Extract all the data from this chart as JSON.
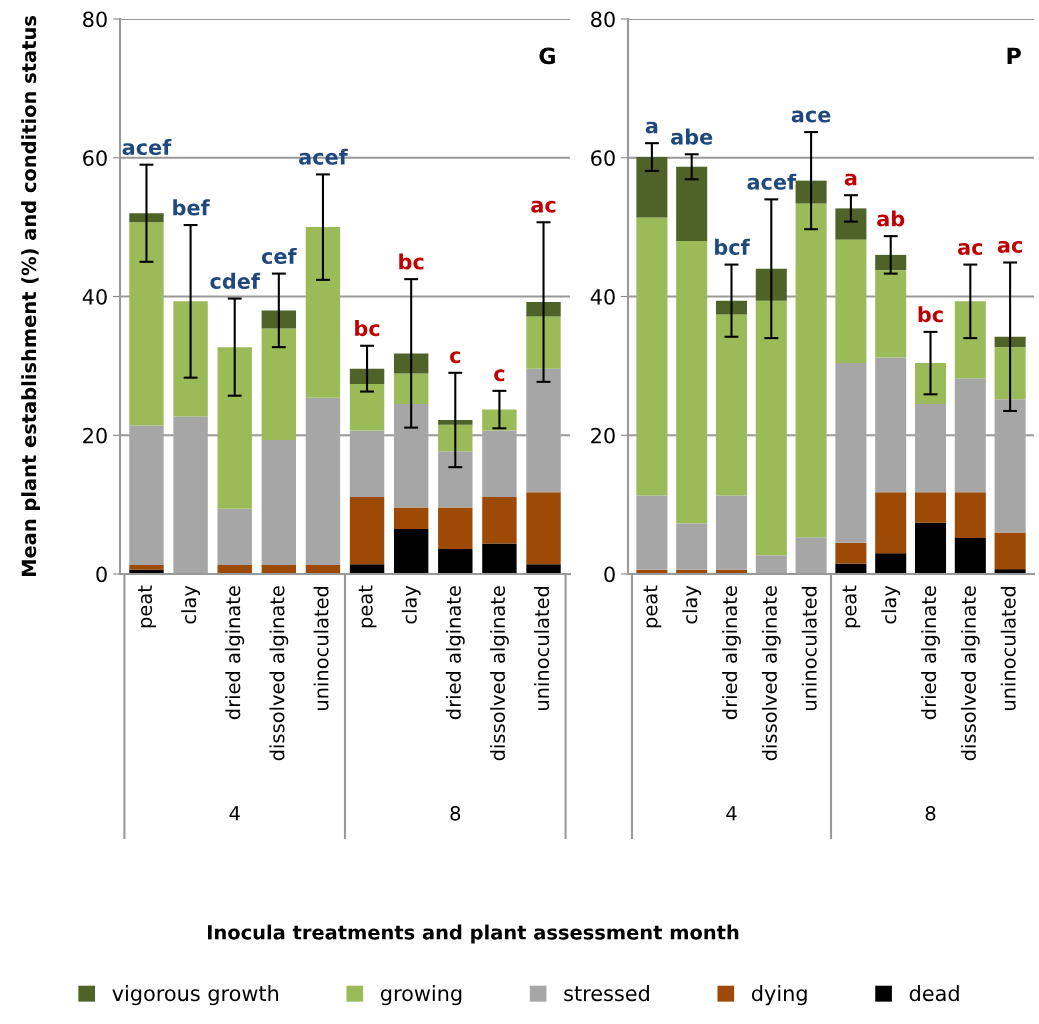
{
  "chart_data": [
    {
      "type": "bar",
      "title": "G",
      "ylabel": "Mean plant establishment (%) and condition status",
      "xlabel": "Inocula treatments and plant assessment month",
      "stacked": true,
      "legend": "bottom",
      "grid": "y",
      "ylim": [
        0,
        80
      ],
      "yticks": [
        0,
        20,
        40,
        60,
        80
      ],
      "categories": [
        "peat",
        "clay",
        "dried alginate",
        "dissolved alginate",
        "uninoculated",
        "peat",
        "clay",
        "dried alginate",
        "dissolved alginate",
        "uninoculated"
      ],
      "series": [
        {
          "name": "dead",
          "color": "#000000",
          "values": [
            0.6,
            0,
            0,
            0,
            0,
            1.4,
            6.5,
            3.6,
            4.4,
            1.4
          ]
        },
        {
          "name": "dying",
          "color": "#9c4a06",
          "values": [
            0.7,
            0,
            1.3,
            1.3,
            1.3,
            9.7,
            3.1,
            6.0,
            6.7,
            10.4
          ]
        },
        {
          "name": "stressed",
          "color": "#a6a6a6",
          "values": [
            20.1,
            22.7,
            8.1,
            18.0,
            24.1,
            9.6,
            14.9,
            8.1,
            9.6,
            17.8
          ]
        },
        {
          "name": "growing",
          "color": "#9bbb59",
          "values": [
            29.3,
            16.6,
            23.3,
            16.1,
            24.6,
            6.7,
            4.4,
            3.8,
            3.0,
            7.5
          ]
        },
        {
          "name": "vigorous growth",
          "color": "#4f6228",
          "values": [
            1.3,
            0,
            0,
            2.6,
            0,
            2.2,
            2.9,
            0.7,
            0,
            2.1
          ],
          "errors": [
            7,
            11,
            7,
            5.3,
            7.6,
            3.3,
            10.7,
            6.8,
            2.7,
            11.5
          ]
        }
      ],
      "annotations": [
        "acef",
        "bef",
        "cdef",
        "cef",
        "acef",
        "bc",
        "bc",
        "c",
        "c",
        "ac",
        "4",
        "8"
      ]
    },
    {
      "type": "bar",
      "title": "P",
      "stacked": true,
      "grid": "y",
      "ylim": [
        0,
        80
      ],
      "yticks": [
        0,
        20,
        40,
        60,
        80
      ],
      "categories": [
        "peat",
        "clay",
        "dried alginate",
        "dissolved alginate",
        "uninoculated",
        "peat",
        "clay",
        "dried alginate",
        "dissolved alginate",
        "uninoculated"
      ],
      "series": [
        {
          "color": "#000000",
          "values": [
            0,
            0,
            0,
            0,
            0,
            1.5,
            3.0,
            7.4,
            5.2,
            0.7
          ]
        },
        {
          "color": "#9c4a06",
          "values": [
            0.6,
            0.6,
            0.6,
            0,
            0,
            3.0,
            8.8,
            4.4,
            6.6,
            5.3
          ]
        },
        {
          "color": "#a6a6a6",
          "values": [
            10.7,
            6.7,
            10.7,
            2.7,
            5.3,
            25.9,
            19.4,
            12.7,
            16.4,
            19.2
          ]
        },
        {
          "color": "#9bbb59",
          "values": [
            40.1,
            40.7,
            26.1,
            36.7,
            48.1,
            17.8,
            12.6,
            5.9,
            11.1,
            7.5
          ]
        },
        {
          "color": "#4f6228",
          "values": [
            8.7,
            10.7,
            2.0,
            4.6,
            3.3,
            4.5,
            2.2,
            0,
            0,
            1.5
          ],
          "errors": [
            2,
            1.8,
            5.2,
            10,
            7,
            1.9,
            2.7,
            4.5,
            5.3,
            10.7
          ]
        }
      ],
      "annotations": [
        "a",
        "abe",
        "bcf",
        "acef",
        "ace",
        "a",
        "ab",
        "bc",
        "ac",
        "ac",
        "4",
        "8"
      ]
    }
  ]
}
